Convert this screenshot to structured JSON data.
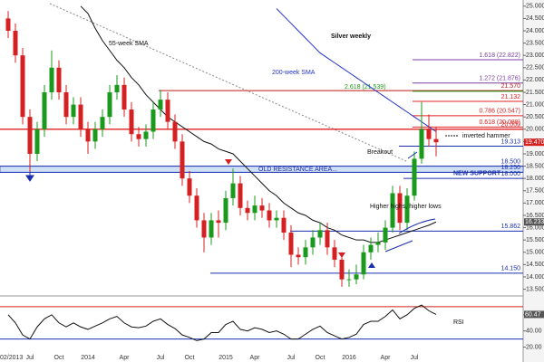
{
  "chart_data": {
    "type": "candlestick",
    "title": "Silver weekly",
    "categories": [
      null,
      null,
      null,
      "Jul",
      null,
      null,
      null,
      "Oct",
      null,
      null,
      null,
      "2014",
      null,
      null,
      null,
      null,
      "Apr",
      null,
      null,
      null,
      null,
      "Jul",
      null,
      null,
      null,
      "Oct",
      null,
      null,
      null,
      null,
      "2015",
      null,
      null,
      null,
      "Apr",
      null,
      null,
      null,
      null,
      "Jul",
      null,
      null,
      null,
      "Oct",
      null,
      null,
      null,
      "2016",
      null,
      null,
      null,
      null,
      "Apr",
      null,
      null,
      null,
      "Jul",
      null,
      null,
      null
    ],
    "date_stamp": "02/2013",
    "open": [
      24.5,
      24.0,
      23.0,
      20.5,
      19.0,
      20.0,
      21.5,
      22.5,
      21.5,
      20.5,
      21.0,
      20.0,
      19.5,
      20.0,
      20.5,
      21.5,
      21.8,
      20.8,
      19.8,
      19.6,
      19.9,
      20.8,
      21.2,
      20.3,
      19.5,
      18.0,
      17.3,
      16.3,
      15.6,
      16.3,
      16.2,
      17.2,
      17.8,
      16.8,
      16.6,
      16.9,
      16.7,
      16.3,
      16.4,
      15.8,
      14.9,
      14.8,
      15.2,
      15.6,
      15.9,
      15.2,
      14.7,
      13.9,
      13.9,
      14.1,
      15.0,
      15.3,
      15.4,
      16.0,
      17.4,
      16.2,
      17.3,
      18.8,
      20.0,
      19.6
    ],
    "high": [
      24.8,
      24.3,
      23.3,
      20.8,
      20.3,
      21.8,
      23.2,
      22.8,
      21.8,
      21.3,
      21.3,
      20.3,
      20.3,
      20.8,
      21.8,
      22.2,
      22.1,
      21.1,
      20.1,
      20.2,
      21.1,
      21.6,
      21.5,
      20.6,
      19.8,
      18.3,
      17.6,
      16.6,
      16.6,
      16.7,
      17.5,
      18.4,
      18.1,
      17.1,
      17.3,
      17.2,
      17.0,
      16.7,
      16.7,
      16.1,
      15.2,
      15.5,
      15.9,
      16.2,
      16.2,
      15.5,
      15.0,
      14.3,
      14.5,
      15.3,
      15.6,
      15.8,
      16.3,
      17.7,
      17.7,
      17.6,
      19.1,
      21.1,
      20.6,
      20.1
    ],
    "low": [
      23.7,
      22.7,
      20.2,
      18.2,
      18.7,
      19.7,
      21.2,
      21.2,
      20.2,
      20.2,
      19.7,
      19.0,
      19.2,
      19.7,
      20.2,
      21.2,
      20.5,
      19.5,
      19.3,
      19.3,
      19.6,
      20.5,
      20.0,
      19.2,
      17.7,
      17.0,
      16.0,
      15.0,
      15.3,
      15.6,
      15.9,
      16.9,
      16.5,
      16.3,
      16.3,
      16.4,
      16.0,
      16.0,
      15.5,
      14.4,
      14.5,
      14.5,
      14.9,
      15.3,
      14.9,
      14.4,
      13.6,
      13.6,
      13.7,
      13.9,
      14.7,
      15.0,
      15.1,
      15.8,
      15.9,
      15.9,
      17.1,
      18.6,
      19.3,
      18.9
    ],
    "close": [
      24.0,
      23.0,
      20.5,
      19.0,
      20.0,
      21.5,
      22.5,
      21.5,
      20.5,
      21.0,
      20.0,
      19.5,
      20.0,
      20.5,
      21.5,
      21.8,
      20.8,
      19.8,
      19.6,
      19.9,
      20.8,
      21.2,
      20.3,
      19.5,
      18.0,
      17.3,
      16.3,
      15.6,
      16.3,
      16.2,
      17.2,
      17.8,
      16.8,
      16.6,
      16.9,
      16.7,
      16.3,
      16.4,
      15.8,
      14.9,
      14.8,
      15.2,
      15.6,
      15.9,
      15.2,
      14.7,
      13.9,
      13.9,
      14.1,
      15.0,
      15.3,
      15.4,
      16.0,
      17.4,
      16.2,
      17.3,
      18.8,
      20.0,
      19.6,
      19.47
    ],
    "close_label": "19.470",
    "up_color": "#1a9a1a",
    "down_color": "#d42020",
    "series": [
      {
        "name": "55-week SMA",
        "color": "#111111",
        "values": [
          null,
          null,
          null,
          null,
          null,
          null,
          null,
          null,
          null,
          null,
          25.0,
          24.7,
          24.1,
          23.6,
          23.2,
          22.8,
          22.5,
          22.1,
          21.8,
          21.4,
          21.1,
          20.8,
          20.5,
          20.3,
          20.1,
          19.9,
          19.7,
          19.5,
          19.4,
          19.2,
          19.1,
          19.0,
          18.7,
          18.4,
          18.1,
          17.8,
          17.5,
          17.3,
          17.0,
          16.8,
          16.6,
          16.5,
          16.3,
          16.2,
          16.0,
          15.9,
          15.7,
          15.6,
          15.5,
          15.5,
          15.4,
          15.4,
          15.5,
          15.6,
          15.7,
          15.8,
          15.9,
          16.0,
          16.1,
          16.233
        ]
      },
      {
        "name": "200-week SMA",
        "color": "#2233cc",
        "values": [
          null,
          null,
          null,
          null,
          null,
          null,
          null,
          null,
          null,
          null,
          null,
          null,
          null,
          null,
          null,
          null,
          null,
          null,
          null,
          null,
          null,
          null,
          null,
          null,
          null,
          null,
          null,
          null,
          null,
          null,
          null,
          null,
          null,
          null,
          null,
          null,
          null,
          24.9,
          24.6,
          24.3,
          24.0,
          23.7,
          23.4,
          23.1,
          22.9,
          22.7,
          22.5,
          22.3,
          22.1,
          21.9,
          21.7,
          21.5,
          21.3,
          21.1,
          20.9,
          20.7,
          20.5,
          20.3,
          20.1,
          19.9
        ]
      }
    ],
    "ylim": [
      13.3,
      25.25
    ],
    "yticks": [
      {
        "value": 13.5,
        "label": "13.500"
      },
      {
        "value": 14,
        "label": "14.000"
      },
      {
        "value": 14.5,
        "label": "14.500"
      },
      {
        "value": 15,
        "label": "15.000"
      },
      {
        "value": 15.5,
        "label": "15.500"
      },
      {
        "value": 16,
        "label": "16.000"
      },
      {
        "value": 16.5,
        "label": "16.500"
      },
      {
        "value": 17,
        "label": "17.000"
      },
      {
        "value": 17.5,
        "label": "17.500"
      },
      {
        "value": 18,
        "label": "18.000"
      },
      {
        "value": 18.5,
        "label": "18.500"
      },
      {
        "value": 19,
        "label": "19.000"
      },
      {
        "value": 19.5,
        "label": "19.500"
      },
      {
        "value": 20,
        "label": "20.000"
      },
      {
        "value": 20.5,
        "label": "20.500"
      },
      {
        "value": 21,
        "label": "21.000"
      },
      {
        "value": 21.5,
        "label": "21.500"
      },
      {
        "value": 22,
        "label": "22.000"
      },
      {
        "value": 22.5,
        "label": "22.500"
      },
      {
        "value": 23,
        "label": "23.000"
      },
      {
        "value": 23.5,
        "label": "23.500"
      },
      {
        "value": 24,
        "label": "24.000"
      },
      {
        "value": 24.5,
        "label": "24.500"
      },
      {
        "value": 25,
        "label": "25.000"
      }
    ],
    "levels": [
      {
        "value": 22.822,
        "label": "1.618 (22.822)",
        "color": "#7a3fa0"
      },
      {
        "value": 21.876,
        "label": "1.272 (21.876)",
        "color": "#7a3fa0"
      },
      {
        "value": 21.57,
        "label": "21.570",
        "color": "#c01818"
      },
      {
        "value": 21.539,
        "label": "2.618 (21.539)",
        "color": "#1a9a1a"
      },
      {
        "value": 21.132,
        "label": "21.132",
        "color": "#e02020"
      },
      {
        "value": 20.547,
        "label": "0.786 (20.547)",
        "color": "#e02020"
      },
      {
        "value": 20.088,
        "label": "0.618 (20.088)",
        "color": "#e02020"
      },
      {
        "value": 20.0,
        "label": "20.000",
        "color": "#e02020"
      },
      {
        "value": 19.313,
        "label": "19.313",
        "color": "#1a2fb0"
      },
      {
        "value": 18.5,
        "label": "18.500",
        "color": "#1a2fb0"
      },
      {
        "value": 18.25,
        "label": "18.250",
        "color": "#1a2fb0"
      },
      {
        "value": 18.0,
        "label": "18.000",
        "color": "#1a2fb0"
      },
      {
        "value": 15.862,
        "label": "15.862",
        "color": "#1a2fb0"
      },
      {
        "value": 14.15,
        "label": "14.150",
        "color": "#1a2fb0"
      }
    ],
    "annotations": {
      "breakout": "Breakout",
      "hammer": "inverted hammer",
      "higher": "Higher highs, higher lows",
      "old_resistance": "OLD RESISTANCE AREA...",
      "new_support": "NEW SUPPORT"
    },
    "rsi": {
      "name": "RSI",
      "color": "#111111",
      "values": [
        60,
        50,
        35,
        30,
        45,
        55,
        60,
        50,
        45,
        50,
        45,
        42,
        46,
        50,
        55,
        58,
        50,
        45,
        44,
        46,
        52,
        55,
        48,
        43,
        35,
        32,
        28,
        30,
        38,
        38,
        48,
        52,
        42,
        40,
        44,
        42,
        38,
        40,
        36,
        30,
        30,
        36,
        42,
        46,
        38,
        34,
        30,
        32,
        36,
        48,
        52,
        52,
        58,
        66,
        55,
        60,
        68,
        72,
        65,
        60.47
      ],
      "ylim": [
        15,
        80
      ],
      "yticks": [
        {
          "value": 20,
          "label": "20.00"
        },
        {
          "value": 40,
          "label": "40.00"
        },
        {
          "value": 60,
          "label": "60.00"
        }
      ],
      "upper": 70,
      "lower": 30
    }
  }
}
